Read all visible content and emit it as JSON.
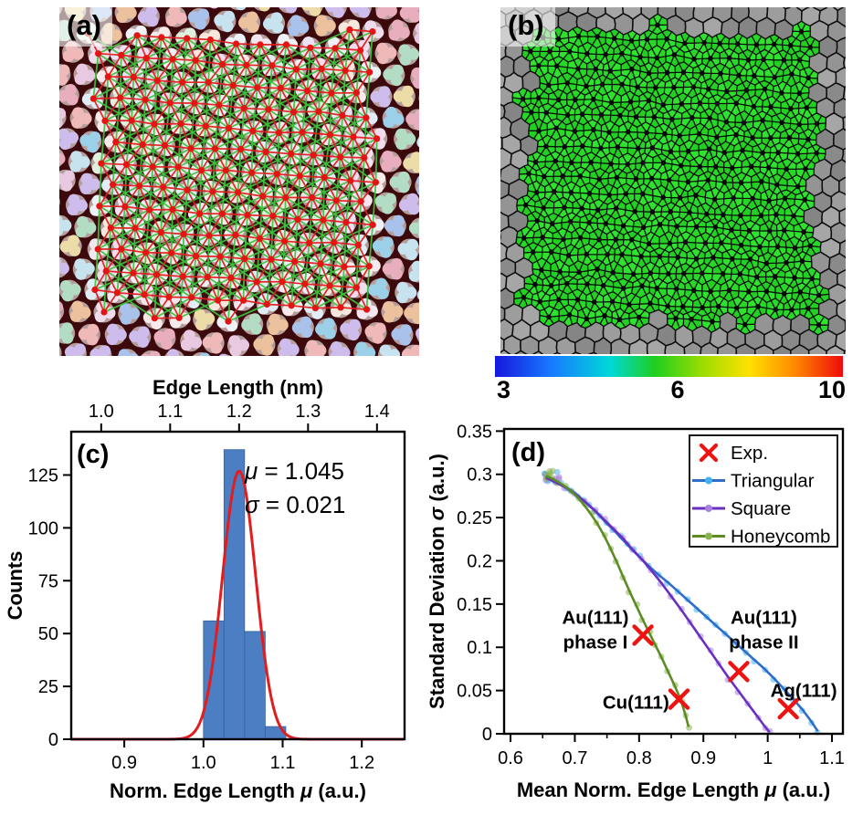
{
  "panel_labels": {
    "a": "(a)",
    "b": "(b)",
    "c": "(c)",
    "d": "(d)"
  },
  "colorbar": {
    "tick_labels": [
      "3",
      "6",
      "10"
    ],
    "gradient": [
      [
        "0%",
        "#1518dd"
      ],
      [
        "16%",
        "#1779ff"
      ],
      [
        "33%",
        "#00d8d8"
      ],
      [
        "46%",
        "#1ecf1e"
      ],
      [
        "60%",
        "#9fdd00"
      ],
      [
        "73%",
        "#ffe100"
      ],
      [
        "86%",
        "#ff8a00"
      ],
      [
        "100%",
        "#ee0a0a"
      ]
    ]
  },
  "panel_a_style": {
    "background": "#3c0a0d",
    "dot_color": "#e41414",
    "red_line": "#dd1d1d",
    "green_line": "#3cc23c",
    "halo": "rgba(255,248,242,0.62)",
    "palette_border": [
      "#e8aebe",
      "#a9c2ec",
      "#b2dcc4",
      "#ecdca8",
      "#cdbcec",
      "#9ccfe8",
      "#ecc29e",
      "#e9c9e2",
      "#c7e3ef",
      "#f0b9b9"
    ],
    "palette_inner": [
      "#f6eaea",
      "#ece2f6",
      "#e0edf6",
      "#f6e8dc",
      "#f0dcec",
      "#dff0df",
      "#f2e6f0",
      "#eef2f6"
    ]
  },
  "panel_b_style": {
    "green_fills": [
      "#27d927",
      "#2ee32e",
      "#22d022"
    ],
    "gray_fills": [
      "#8a8a8a",
      "#949494",
      "#9d9d9d",
      "#858585",
      "#a6a6a6"
    ],
    "edge_color": "#0d0d0d",
    "dot_color": "#070707"
  },
  "chart_data": [
    {
      "panel": "c",
      "type": "bar",
      "panel_letter": "(c)",
      "title_top_axis": "Edge Length (nm)",
      "xlabel": "Norm. Edge Length μ (a.u.)",
      "ylabel": "Counts",
      "x_range": [
        0.833,
        1.254
      ],
      "y_range": [
        0,
        145.5
      ],
      "nm_per_unit": 1.1483,
      "x_ticks": [
        {
          "v": 0.9,
          "label": "0.9"
        },
        {
          "v": 1.0,
          "label": "1.0"
        },
        {
          "v": 1.1,
          "label": "1.1"
        },
        {
          "v": 1.2,
          "label": "1.2"
        }
      ],
      "top_ticks": [
        {
          "nm": 1.0,
          "label": "1.0"
        },
        {
          "nm": 1.1,
          "label": "1.1"
        },
        {
          "nm": 1.2,
          "label": "1.2"
        },
        {
          "nm": 1.3,
          "label": "1.3"
        },
        {
          "nm": 1.4,
          "label": "1.4"
        }
      ],
      "y_ticks": [
        {
          "v": 0,
          "label": "0"
        },
        {
          "v": 25,
          "label": "25"
        },
        {
          "v": 50,
          "label": "50"
        },
        {
          "v": 75,
          "label": "75"
        },
        {
          "v": 100,
          "label": "100"
        },
        {
          "v": 125,
          "label": "125"
        }
      ],
      "histogram": {
        "bin_edges": [
          1.0,
          1.026,
          1.052,
          1.078,
          1.104
        ],
        "counts": [
          56,
          137,
          51,
          6
        ],
        "bar_color": "#4b7ec2",
        "bar_edge": "#35629e"
      },
      "gaussian_fit": {
        "amplitude": 127,
        "mu": 1.045,
        "sigma": 0.021,
        "color": "#e21d1f"
      },
      "stats_text": [
        "μ = 1.045",
        "σ = 0.021"
      ]
    },
    {
      "panel": "d",
      "type": "line",
      "panel_letter": "(d)",
      "xlabel": "Mean Norm. Edge Length μ (a.u.)",
      "ylabel": "Standard Deviation σ (a.u.)",
      "x_range": [
        0.59,
        1.117
      ],
      "y_range": [
        0,
        0.3525
      ],
      "x_ticks": [
        {
          "v": 0.6,
          "label": "0.6"
        },
        {
          "v": 0.7,
          "label": "0.7"
        },
        {
          "v": 0.8,
          "label": "0.8"
        },
        {
          "v": 0.9,
          "label": "0.9"
        },
        {
          "v": 1.0,
          "label": "1"
        },
        {
          "v": 1.1,
          "label": "1.1"
        }
      ],
      "x_minor_ticks": [
        0.65,
        0.75,
        0.85,
        0.95,
        1.05
      ],
      "y_ticks": [
        {
          "v": 0,
          "label": "0"
        },
        {
          "v": 0.05,
          "label": "0.05"
        },
        {
          "v": 0.1,
          "label": "0.1"
        },
        {
          "v": 0.15,
          "label": "0.15"
        },
        {
          "v": 0.2,
          "label": "0.2"
        },
        {
          "v": 0.25,
          "label": "0.25"
        },
        {
          "v": 0.3,
          "label": "0.3"
        },
        {
          "v": 0.35,
          "label": "0.35"
        }
      ],
      "series": [
        {
          "name": "Triangular",
          "line_color": "#2f6ec8",
          "marker_color": "#44b2f2",
          "points": [
            [
              0.655,
              0.297
            ],
            [
              0.662,
              0.295
            ],
            [
              0.67,
              0.292
            ],
            [
              0.678,
              0.289
            ],
            [
              0.686,
              0.285
            ],
            [
              0.695,
              0.281
            ],
            [
              0.704,
              0.276
            ],
            [
              0.713,
              0.27
            ],
            [
              0.722,
              0.264
            ],
            [
              0.731,
              0.258
            ],
            [
              0.74,
              0.251
            ],
            [
              0.75,
              0.243
            ],
            [
              0.76,
              0.236
            ],
            [
              0.77,
              0.228
            ],
            [
              0.78,
              0.22
            ],
            [
              0.79,
              0.212
            ],
            [
              0.8,
              0.205
            ],
            [
              0.815,
              0.194
            ],
            [
              0.83,
              0.184
            ],
            [
              0.845,
              0.175
            ],
            [
              0.86,
              0.165
            ],
            [
              0.875,
              0.155
            ],
            [
              0.89,
              0.145
            ],
            [
              0.905,
              0.135
            ],
            [
              0.92,
              0.125
            ],
            [
              0.935,
              0.115
            ],
            [
              0.95,
              0.105
            ],
            [
              0.965,
              0.095
            ],
            [
              0.98,
              0.085
            ],
            [
              0.995,
              0.075
            ],
            [
              1.01,
              0.064
            ],
            [
              1.025,
              0.052
            ],
            [
              1.04,
              0.04
            ],
            [
              1.055,
              0.027
            ],
            [
              1.068,
              0.014
            ],
            [
              1.078,
              0.003
            ]
          ]
        },
        {
          "name": "Square",
          "line_color": "#6a2fc2",
          "marker_color": "#a881dc",
          "points": [
            [
              0.655,
              0.296
            ],
            [
              0.67,
              0.291
            ],
            [
              0.685,
              0.285
            ],
            [
              0.7,
              0.277
            ],
            [
              0.715,
              0.269
            ],
            [
              0.73,
              0.259
            ],
            [
              0.745,
              0.248
            ],
            [
              0.76,
              0.237
            ],
            [
              0.775,
              0.226
            ],
            [
              0.79,
              0.213
            ],
            [
              0.805,
              0.201
            ],
            [
              0.82,
              0.188
            ],
            [
              0.835,
              0.174
            ],
            [
              0.85,
              0.159
            ],
            [
              0.865,
              0.144
            ],
            [
              0.88,
              0.128
            ],
            [
              0.895,
              0.112
            ],
            [
              0.91,
              0.096
            ],
            [
              0.925,
              0.08
            ],
            [
              0.94,
              0.064
            ],
            [
              0.955,
              0.049
            ],
            [
              0.97,
              0.034
            ],
            [
              0.985,
              0.019
            ],
            [
              0.997,
              0.007
            ],
            [
              1.003,
              0.002
            ]
          ]
        },
        {
          "name": "Honeycomb",
          "line_color": "#5c8b24",
          "marker_color": "#88b350",
          "points": [
            [
              0.655,
              0.298
            ],
            [
              0.665,
              0.295
            ],
            [
              0.675,
              0.291
            ],
            [
              0.685,
              0.286
            ],
            [
              0.695,
              0.28
            ],
            [
              0.705,
              0.273
            ],
            [
              0.715,
              0.264
            ],
            [
              0.725,
              0.254
            ],
            [
              0.735,
              0.243
            ],
            [
              0.745,
              0.23
            ],
            [
              0.755,
              0.215
            ],
            [
              0.765,
              0.199
            ],
            [
              0.775,
              0.182
            ],
            [
              0.785,
              0.165
            ],
            [
              0.795,
              0.149
            ],
            [
              0.805,
              0.133
            ],
            [
              0.815,
              0.118
            ],
            [
              0.825,
              0.103
            ],
            [
              0.835,
              0.088
            ],
            [
              0.845,
              0.072
            ],
            [
              0.855,
              0.056
            ],
            [
              0.865,
              0.039
            ],
            [
              0.872,
              0.022
            ],
            [
              0.877,
              0.008
            ]
          ]
        }
      ],
      "experimental": {
        "name": "Exp.",
        "color": "#ee1313",
        "points": [
          {
            "x": 0.806,
            "y": 0.114,
            "label": "Au(111) phase I"
          },
          {
            "x": 0.862,
            "y": 0.04,
            "label": "Cu(111)"
          },
          {
            "x": 0.955,
            "y": 0.072,
            "label": "Au(111) phase II"
          },
          {
            "x": 1.032,
            "y": 0.029,
            "label": "Ag(111)"
          }
        ]
      },
      "annotations": [
        {
          "lines": [
            "Au(111)",
            "phase I"
          ],
          "x": 0.732,
          "y": 0.127
        },
        {
          "lines": [
            "Cu(111)"
          ],
          "x": 0.795,
          "y": 0.029
        },
        {
          "lines": [
            "Au(111)",
            "phase II"
          ],
          "x": 0.994,
          "y": 0.127
        },
        {
          "lines": [
            "Ag(111)"
          ],
          "x": 1.056,
          "y": 0.0425
        }
      ],
      "legend": {
        "entries": [
          "Exp.",
          "Triangular",
          "Square",
          "Honeycomb"
        ]
      }
    }
  ]
}
